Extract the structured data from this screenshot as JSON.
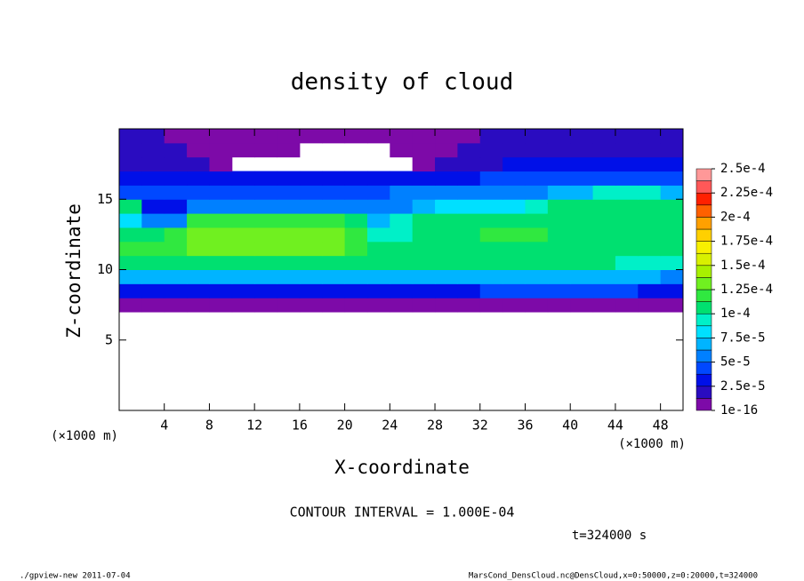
{
  "chart_data": {
    "type": "heatmap",
    "title": "density of cloud",
    "xlabel": "X-coordinate",
    "ylabel": "Z-coordinate",
    "axis_unit": "(×1000 m)",
    "contour_note": "CONTOUR INTERVAL = 1.000E-04",
    "time_note": "t=324000 s",
    "footer_left": "./gpview-new  2011-07-04",
    "footer_right": "MarsCond_DensCloud.nc@DensCloud,x=0:50000,z=0:20000,t=324000",
    "xlim": [
      0,
      50
    ],
    "ylim": [
      0,
      20
    ],
    "xticks": [
      4,
      8,
      12,
      16,
      20,
      24,
      28,
      32,
      36,
      40,
      44,
      48
    ],
    "yticks": [
      5,
      10,
      15
    ],
    "x_edges": [
      0,
      2,
      4,
      6,
      8,
      10,
      12,
      14,
      16,
      18,
      20,
      22,
      24,
      26,
      28,
      30,
      32,
      34,
      36,
      38,
      40,
      42,
      44,
      46,
      48,
      50
    ],
    "z_edges": [
      7,
      8,
      9,
      10,
      11,
      12,
      13,
      14,
      15,
      16,
      17,
      18,
      19,
      20
    ],
    "values": [
      [
        8e-06,
        8e-06,
        8e-06,
        8e-06,
        8e-06,
        8e-06,
        8e-06,
        8e-06,
        8e-06,
        8e-06,
        8e-06,
        8e-06,
        8e-06,
        8e-06,
        8e-06,
        8e-06,
        8e-06,
        8e-06,
        8e-06,
        8e-06,
        8e-06,
        8e-06,
        8e-06,
        8e-06,
        8e-06
      ],
      [
        3e-05,
        3e-05,
        3e-05,
        3.2e-05,
        3.2e-05,
        3.2e-05,
        3.2e-05,
        3.2e-05,
        3.2e-05,
        3.2e-05,
        3.2e-05,
        3.2e-05,
        3.5e-05,
        3.5e-05,
        3.5e-05,
        3.5e-05,
        3.8e-05,
        3.8e-05,
        4e-05,
        4e-05,
        4e-05,
        4e-05,
        4e-05,
        3.5e-05,
        3.5e-05
      ],
      [
        6.5e-05,
        6.5e-05,
        6.5e-05,
        6.8e-05,
        6.8e-05,
        7e-05,
        7e-05,
        7e-05,
        7e-05,
        7e-05,
        7e-05,
        7e-05,
        7e-05,
        7e-05,
        7e-05,
        7e-05,
        7e-05,
        7e-05,
        7e-05,
        7e-05,
        7e-05,
        7e-05,
        7e-05,
        6.5e-05,
        6e-05
      ],
      [
        0.0001,
        0.0001,
        0.000102,
        0.000105,
        0.000105,
        0.000105,
        0.000105,
        0.000105,
        0.000105,
        0.000105,
        0.000105,
        0.000102,
        0.0001,
        0.0001,
        0.0001,
        0.0001,
        0.0001,
        0.0001,
        0.0001,
        0.0001,
        0.0001,
        0.0001,
        9.5e-05,
        9.5e-05,
        9e-05
      ],
      [
        0.000115,
        0.000115,
        0.00012,
        0.000125,
        0.000125,
        0.000128,
        0.000128,
        0.000128,
        0.000128,
        0.000125,
        0.00012,
        0.00011,
        0.000105,
        0.000105,
        0.00011,
        0.00011,
        0.00011,
        0.00011,
        0.00011,
        0.00011,
        0.00011,
        0.00011,
        0.00011,
        0.00011,
        0.000105
      ],
      [
        0.00011,
        0.00011,
        0.000115,
        0.000125,
        0.00013,
        0.000132,
        0.000135,
        0.000135,
        0.000132,
        0.00013,
        0.00012,
        9e-05,
        9e-05,
        0.000105,
        0.00011,
        0.000112,
        0.000115,
        0.000115,
        0.000115,
        0.000112,
        0.000112,
        0.000112,
        0.000112,
        0.000112,
        0.00011
      ],
      [
        8e-05,
        5e-05,
        5e-05,
        0.000115,
        0.00012,
        0.00012,
        0.00012,
        0.00012,
        0.00012,
        0.000115,
        0.0001,
        7e-05,
        9e-05,
        0.000105,
        0.000105,
        0.000105,
        0.000108,
        0.000108,
        0.00011,
        0.00011,
        0.00011,
        0.00011,
        0.00011,
        0.00011,
        0.000105
      ],
      [
        0.0001,
        3.5e-05,
        3.5e-05,
        6e-05,
        6e-05,
        6e-05,
        6e-05,
        6e-05,
        6e-05,
        6e-05,
        6e-05,
        5e-05,
        5e-05,
        7e-05,
        8e-05,
        8e-05,
        8e-05,
        8e-05,
        9e-05,
        0.0001,
        0.0001,
        0.0001,
        0.0001,
        0.0001,
        0.0001
      ],
      [
        4e-05,
        4e-05,
        4e-05,
        4.5e-05,
        4.5e-05,
        4.5e-05,
        4.5e-05,
        4.5e-05,
        4.5e-05,
        4.5e-05,
        4.5e-05,
        4.5e-05,
        5e-05,
        5e-05,
        5e-05,
        5e-05,
        5e-05,
        5e-05,
        6e-05,
        7e-05,
        7e-05,
        9e-05,
        9e-05,
        9e-05,
        7e-05
      ],
      [
        2.5e-05,
        2.5e-05,
        2.5e-05,
        2.8e-05,
        3e-05,
        3e-05,
        3e-05,
        3e-05,
        3e-05,
        3e-05,
        3e-05,
        3e-05,
        3e-05,
        3e-05,
        3.2e-05,
        3.5e-05,
        4e-05,
        4e-05,
        4e-05,
        4e-05,
        4e-05,
        4e-05,
        4e-05,
        4e-05,
        4e-05
      ],
      [
        2e-05,
        2e-05,
        2e-05,
        1.5e-05,
        1.2e-05,
        null,
        null,
        null,
        null,
        null,
        null,
        null,
        null,
        1e-05,
        1.5e-05,
        2e-05,
        2.2e-05,
        2.5e-05,
        2.5e-05,
        2.5e-05,
        2.5e-05,
        2.5e-05,
        2.5e-05,
        2.5e-05,
        2.5e-05
      ],
      [
        1.5e-05,
        1.5e-05,
        1.5e-05,
        1e-05,
        8e-06,
        8e-06,
        8e-06,
        8e-06,
        null,
        null,
        null,
        null,
        8e-06,
        8e-06,
        1e-05,
        1.5e-05,
        2e-05,
        2e-05,
        2e-05,
        2e-05,
        2e-05,
        2e-05,
        2e-05,
        2e-05,
        2e-05
      ],
      [
        1.5e-05,
        1.5e-05,
        1.2e-05,
        7e-06,
        7e-06,
        7e-06,
        7e-06,
        7e-06,
        7e-06,
        7e-06,
        7e-06,
        7e-06,
        7e-06,
        7e-06,
        7e-06,
        1.2e-05,
        1.8e-05,
        1.8e-05,
        1.8e-05,
        1.8e-05,
        1.8e-05,
        1.8e-05,
        1.8e-05,
        1.8e-05,
        1.8e-05
      ]
    ],
    "color_levels": [
      1e-16,
      1.25e-05,
      2.5e-05,
      3.75e-05,
      5e-05,
      6.25e-05,
      7.5e-05,
      8.75e-05,
      0.0001,
      0.0001125,
      0.000125,
      0.0001375,
      0.00015,
      0.0001625,
      0.000175,
      0.0001875,
      0.0002,
      0.0002125,
      0.000225,
      0.0002375,
      0.00025
    ],
    "colors": [
      "#7d0aa8",
      "#2a0cc0",
      "#0010e8",
      "#0048ff",
      "#0080ff",
      "#00b4ff",
      "#00e0ff",
      "#00f0c8",
      "#00e070",
      "#30e840",
      "#70f020",
      "#a8f000",
      "#d8f000",
      "#f8f000",
      "#ffd000",
      "#ffa000",
      "#ff6000",
      "#ff2000",
      "#ff5858",
      "#ff9898"
    ],
    "clim": [
      1e-16,
      0.00025
    ],
    "cticks": [
      {
        "value": 1e-16,
        "label": "1e-16"
      },
      {
        "value": 2.5e-05,
        "label": "2.5e-5"
      },
      {
        "value": 5e-05,
        "label": "5e-5"
      },
      {
        "value": 7.5e-05,
        "label": "7.5e-5"
      },
      {
        "value": 0.0001,
        "label": "1e-4"
      },
      {
        "value": 0.000125,
        "label": "1.25e-4"
      },
      {
        "value": 0.00015,
        "label": "1.5e-4"
      },
      {
        "value": 0.000175,
        "label": "1.75e-4"
      },
      {
        "value": 0.0002,
        "label": "2e-4"
      },
      {
        "value": 0.000225,
        "label": "2.25e-4"
      },
      {
        "value": 0.00025,
        "label": "2.5e-4"
      }
    ]
  }
}
